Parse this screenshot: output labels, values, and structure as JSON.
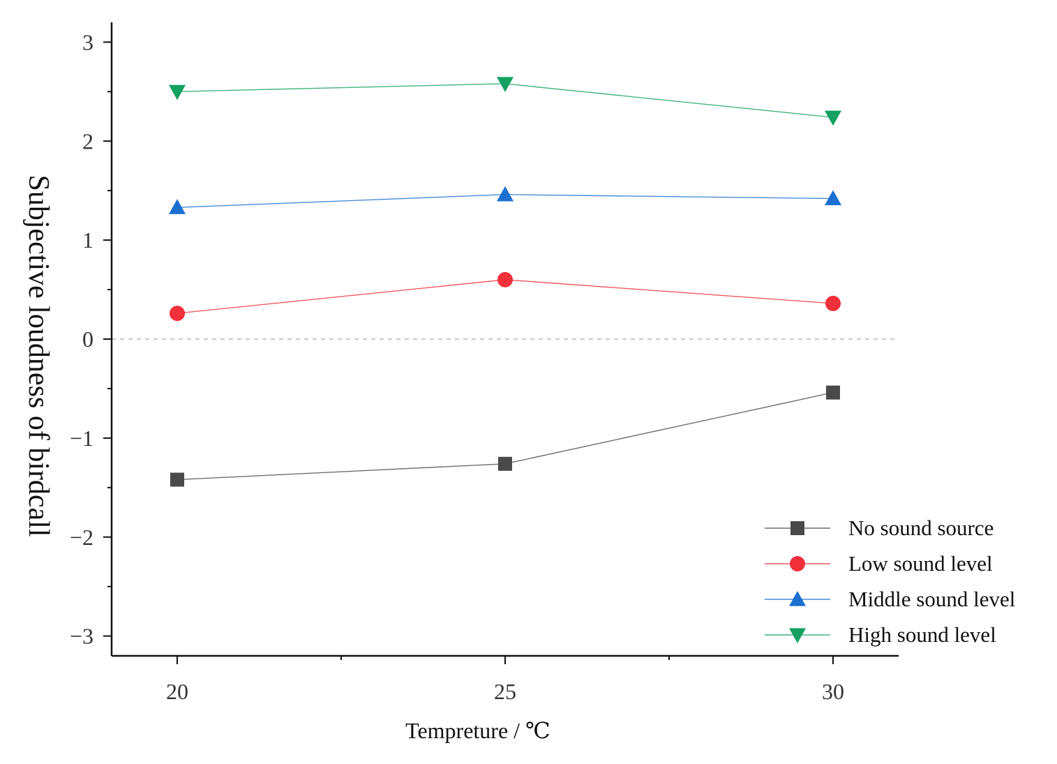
{
  "chart_data": {
    "type": "line",
    "title": "",
    "xlabel": "Tempreture / ℃",
    "ylabel": "Subjective loudness of birdcall",
    "x": [
      20,
      25,
      30
    ],
    "xlim": [
      19,
      31
    ],
    "ylim": [
      -3.2,
      3.2
    ],
    "xticks": [
      20,
      25,
      30
    ],
    "xtick_labels": [
      "20",
      "25",
      "30"
    ],
    "yticks": [
      3,
      2,
      1,
      0,
      -1,
      -2,
      -3
    ],
    "ytick_labels": [
      "3",
      "2",
      "1",
      "0",
      "−1",
      "−2",
      "−3"
    ],
    "reference_line": {
      "y": 0,
      "style": "dashed"
    },
    "legend_position": "bottom-right",
    "series": [
      {
        "name": "No sound source",
        "marker": "square",
        "color": "#4a4a4a",
        "values": [
          -1.42,
          -1.26,
          -0.54
        ]
      },
      {
        "name": "Low sound level",
        "marker": "circle",
        "color": "#f0303a",
        "values": [
          0.26,
          0.6,
          0.36
        ]
      },
      {
        "name": "Middle sound level",
        "marker": "triangle-up",
        "color": "#1a6fd0",
        "values": [
          1.33,
          1.46,
          1.42
        ]
      },
      {
        "name": "High sound level",
        "marker": "triangle-down",
        "color": "#14a060",
        "values": [
          2.5,
          2.58,
          2.24
        ]
      }
    ]
  }
}
